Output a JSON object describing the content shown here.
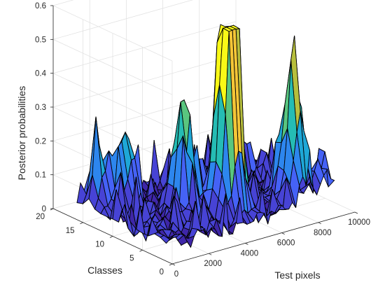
{
  "chart_data": {
    "type": "surface",
    "title": "",
    "xlabel": "Test pixels",
    "ylabel": "Classes",
    "zlabel": "Posterior probabilities",
    "xlim": [
      0,
      10000
    ],
    "ylim": [
      0,
      20
    ],
    "zlim": [
      0,
      0.6
    ],
    "xticks": [
      0,
      2000,
      4000,
      6000,
      8000,
      10000
    ],
    "yticks": [
      0,
      5,
      10,
      15,
      20
    ],
    "zticks": [
      0,
      0.1,
      0.2,
      0.3,
      0.4,
      0.5,
      0.6
    ],
    "grid": true,
    "colormap": "parula",
    "edge_color": "#000000",
    "n_classes": 16,
    "n_test_pixels": 9200,
    "peaks": [
      {
        "class": 5,
        "pixel": 4800,
        "value": 0.58
      },
      {
        "class": 5,
        "pixel": 4500,
        "value": 0.5
      },
      {
        "class": 3,
        "pixel": 7600,
        "value": 0.43
      },
      {
        "class": 8,
        "pixel": 3200,
        "value": 0.35
      },
      {
        "class": 12,
        "pixel": 1400,
        "value": 0.25
      },
      {
        "class": 14,
        "pixel": 600,
        "value": 0.2
      },
      {
        "class": 2,
        "pixel": 8800,
        "value": 0.12
      }
    ]
  }
}
